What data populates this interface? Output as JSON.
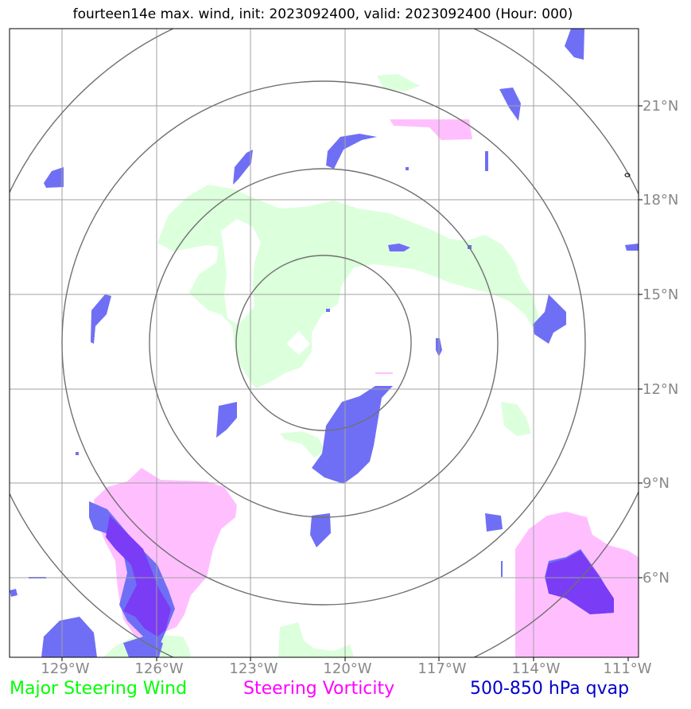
{
  "title": "fourteen14e max. wind, init: 2023092400, valid: 2023092400 (Hour: 000)",
  "lon_labels": [
    "129°W",
    "126°W",
    "123°W",
    "120°W",
    "117°W",
    "114°W",
    "111°W"
  ],
  "lat_labels": [
    "21°N",
    "18°N",
    "15°N",
    "12°N",
    "9°N",
    "6°N"
  ],
  "legend": {
    "green": "Major Steering Wind",
    "magenta": "Steering Vorticity",
    "blue": "500-850 hPa qvap"
  },
  "colors": {
    "green": "#00ff00",
    "magenta": "#ff00ff",
    "blue": "#0000cc",
    "green_fill": "#dcffdc",
    "magenta_fill": "#ffbfff",
    "blue_fill": "#6f6ff5",
    "purple_fill": "#7a3cf5",
    "grid": "#a0a0a0",
    "range_rings": "#707070",
    "tick_label": "#888888"
  }
}
